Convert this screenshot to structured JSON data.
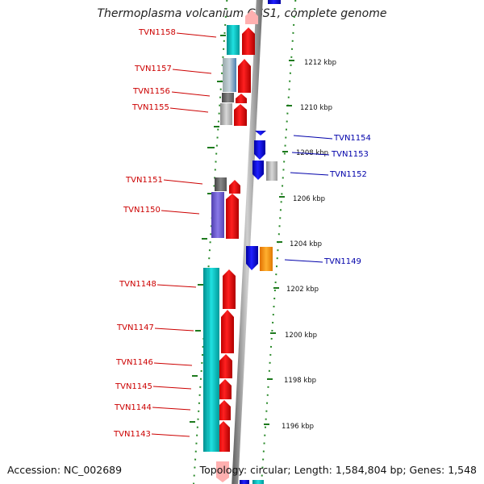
{
  "title": "Thermoplasma volcanium GSS1, complete genome",
  "accession": "Accession: NC_002689",
  "topology": "Topology: circular; Length: 1,584,804 bp; Genes: 1,548",
  "colors": {
    "forward_label": "#cc0000",
    "reverse_label": "#0000aa",
    "forward_gene": "#ff0000",
    "reverse_gene": "#0000ee",
    "backbone": "#8a8a8a",
    "tick": "#228B22"
  },
  "kbp_ticks": [
    "1212 kbp",
    "1210 kbp",
    "1208 kbp",
    "1206 kbp",
    "1204 kbp",
    "1202 kbp",
    "1200 kbp",
    "1198 kbp",
    "1196 kbp"
  ],
  "forward_genes": [
    {
      "label": "TVN1158"
    },
    {
      "label": "TVN1157"
    },
    {
      "label": "TVN1156"
    },
    {
      "label": "TVN1155"
    },
    {
      "label": "TVN1151"
    },
    {
      "label": "TVN1150"
    },
    {
      "label": "TVN1148"
    },
    {
      "label": "TVN1147"
    },
    {
      "label": "TVN1146"
    },
    {
      "label": "TVN1145"
    },
    {
      "label": "TVN1144"
    },
    {
      "label": "TVN1143"
    }
  ],
  "reverse_genes": [
    {
      "label": "TVN1154"
    },
    {
      "label": "TVN1153"
    },
    {
      "label": "TVN1152"
    },
    {
      "label": "TVN1149"
    }
  ]
}
